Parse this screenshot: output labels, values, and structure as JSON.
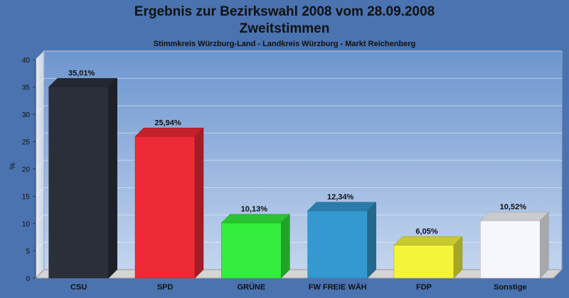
{
  "chart_data": {
    "type": "bar",
    "title": "Ergebnis zur Bezirkswahl 2008 vom 28.09.2008",
    "title_line2": "Zweitstimmen",
    "subtitle": "Stimmkreis Würzburg-Land - Landkreis Würzburg - Markt Reichenberg",
    "ylabel": "%",
    "ylim": [
      0,
      40
    ],
    "yticks": [
      0,
      5,
      10,
      15,
      20,
      25,
      30,
      35,
      40
    ],
    "grid": true,
    "categories": [
      "CSU",
      "SPD",
      "GRÜNE",
      "FW FREIE WÄH",
      "FDP",
      "Sonstige"
    ],
    "values": [
      35.01,
      25.94,
      10.13,
      12.34,
      6.05,
      10.52
    ],
    "data_labels": [
      "35,01%",
      "25,94%",
      "10,13%",
      "12,34%",
      "6,05%",
      "10,52%"
    ],
    "colors": [
      "#2a2f3a",
      "#ee2a36",
      "#33ee3c",
      "#3399d0",
      "#f4f43a",
      "#f6f7fc"
    ]
  }
}
